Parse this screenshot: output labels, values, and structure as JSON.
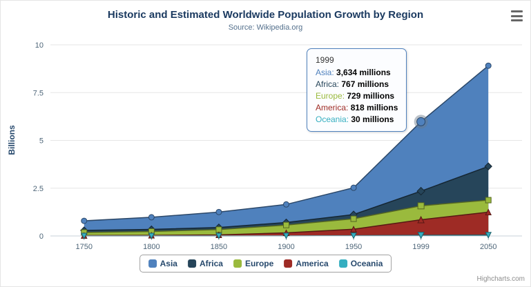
{
  "title": "Historic and Estimated Worldwide Population Growth by Region",
  "subtitle": "Source: Wikipedia.org",
  "credits": "Highcharts.com",
  "chart_data": {
    "type": "area",
    "stacked": true,
    "title": "Historic and Estimated Worldwide Population Growth by Region",
    "subtitle": "Source: Wikipedia.org",
    "x": [
      1750,
      1800,
      1850,
      1900,
      1950,
      1999,
      2050
    ],
    "xlabel": "",
    "ylabel": "Billions",
    "ylim": [
      0,
      10
    ],
    "yticks": [
      0,
      2.5,
      5,
      7.5,
      10
    ],
    "values_unit": "millions",
    "legend_position": "bottom",
    "grid": true,
    "series": [
      {
        "name": "Asia",
        "color": "#4F81BD",
        "marker": "circle",
        "values": [
          502,
          635,
          809,
          947,
          1402,
          3634,
          5268
        ]
      },
      {
        "name": "Africa",
        "color": "#26455A",
        "marker": "diamond",
        "values": [
          106,
          107,
          111,
          133,
          221,
          767,
          1766
        ]
      },
      {
        "name": "Europe",
        "color": "#9ABA3D",
        "marker": "square",
        "values": [
          163,
          203,
          276,
          408,
          547,
          729,
          628
        ]
      },
      {
        "name": "America",
        "color": "#9E2B25",
        "marker": "triangle",
        "values": [
          18,
          31,
          54,
          156,
          339,
          818,
          1201
        ]
      },
      {
        "name": "Oceania",
        "color": "#35AEC0",
        "marker": "triangle-down",
        "values": [
          2,
          2,
          2,
          6,
          13,
          30,
          46
        ]
      }
    ],
    "tooltip": {
      "header": "1999",
      "rows": [
        {
          "series": "Asia",
          "value": "3,634 millions"
        },
        {
          "series": "Africa",
          "value": "767 millions"
        },
        {
          "series": "Europe",
          "value": "729 millions"
        },
        {
          "series": "America",
          "value": "818 millions"
        },
        {
          "series": "Oceania",
          "value": "30 millions"
        }
      ],
      "hover_x": "1999"
    }
  }
}
